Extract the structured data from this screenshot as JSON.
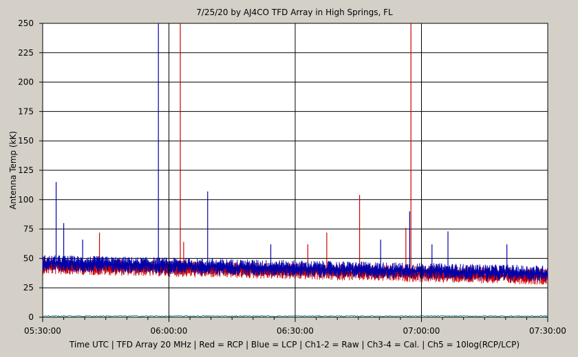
{
  "chart_data": {
    "type": "line",
    "title": "7/25/20  by  AJ4CO TFD Array  in  High Springs, FL",
    "xlabel": "Time UTC | TFD Array 20 MHz | Red = RCP | Blue = LCP | Ch1-2 = Raw | Ch3-4 = Cal. | Ch5 = 10log(RCP/LCP)",
    "ylabel": "Antenna Temp (kK)",
    "ylim": [
      0,
      250
    ],
    "yticks": [
      0,
      25,
      50,
      75,
      100,
      125,
      150,
      175,
      200,
      225,
      250
    ],
    "xlim_minutes": [
      330,
      450
    ],
    "xticks": [
      {
        "value": 330,
        "label": "05:30:00"
      },
      {
        "value": 360,
        "label": "06:00:00"
      },
      {
        "value": 390,
        "label": "06:30:00"
      },
      {
        "value": 420,
        "label": "07:00:00"
      },
      {
        "value": 450,
        "label": "07:30:00"
      }
    ],
    "grid": true,
    "colors": {
      "rcp": "#cc0000",
      "lcp": "#0000aa",
      "ratio": "#008080",
      "background": "#ffffff",
      "frame": "#d4d0c8"
    },
    "series": [
      {
        "name": "Red = RCP",
        "color": "#cc0000"
      },
      {
        "name": "Blue = LCP",
        "color": "#0000aa"
      },
      {
        "name": "Ch5 = 10log(RCP/LCP)",
        "color": "#008080"
      }
    ],
    "trend": {
      "start_value": 45,
      "end_value": 36
    },
    "vertical_markers_minutes": [
      360,
      420
    ],
    "spikes": [
      {
        "x": 333.2,
        "value": 115,
        "series": "lcp"
      },
      {
        "x": 335.0,
        "value": 80,
        "series": "lcp"
      },
      {
        "x": 339.5,
        "value": 66,
        "series": "lcp"
      },
      {
        "x": 343.5,
        "value": 72,
        "series": "rcp"
      },
      {
        "x": 357.5,
        "value": 250,
        "series": "lcp"
      },
      {
        "x": 362.7,
        "value": 250,
        "series": "rcp"
      },
      {
        "x": 363.5,
        "value": 64,
        "series": "rcp"
      },
      {
        "x": 369.2,
        "value": 107,
        "series": "lcp"
      },
      {
        "x": 384.2,
        "value": 62,
        "series": "lcp"
      },
      {
        "x": 393.0,
        "value": 62,
        "series": "rcp"
      },
      {
        "x": 397.5,
        "value": 72,
        "series": "rcp"
      },
      {
        "x": 405.3,
        "value": 104,
        "series": "rcp"
      },
      {
        "x": 410.3,
        "value": 66,
        "series": "lcp"
      },
      {
        "x": 416.3,
        "value": 76,
        "series": "rcp"
      },
      {
        "x": 417.5,
        "value": 250,
        "series": "rcp"
      },
      {
        "x": 417.2,
        "value": 90,
        "series": "lcp"
      },
      {
        "x": 422.5,
        "value": 62,
        "series": "lcp"
      },
      {
        "x": 426.3,
        "value": 73,
        "series": "lcp"
      },
      {
        "x": 440.3,
        "value": 62,
        "series": "lcp"
      }
    ]
  }
}
